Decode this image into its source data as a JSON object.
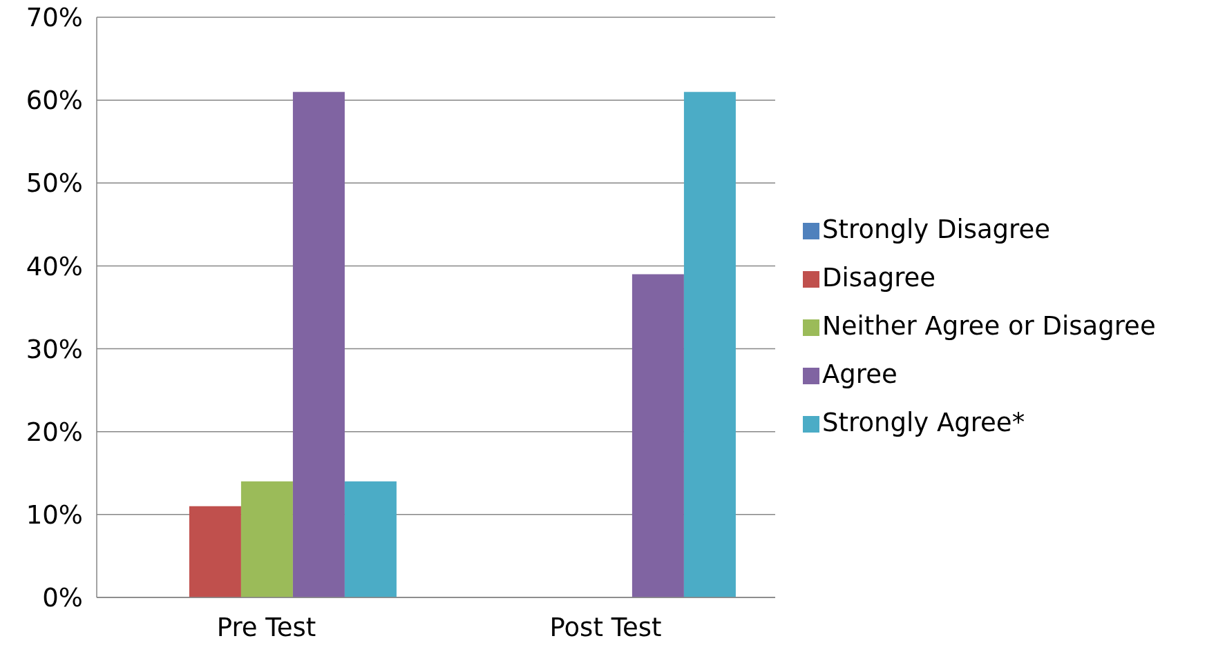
{
  "chart_data": {
    "type": "bar",
    "categories": [
      "Pre Test",
      "Post Test"
    ],
    "series": [
      {
        "name": "Strongly Disagree",
        "color": "#4f81bd",
        "values": [
          0,
          0
        ]
      },
      {
        "name": "Disagree",
        "color": "#c0504d",
        "values": [
          11,
          0
        ]
      },
      {
        "name": "Neither Agree or Disagree",
        "color": "#9bbb59",
        "values": [
          14,
          0
        ]
      },
      {
        "name": "Agree",
        "color": "#8064a2",
        "values": [
          61,
          39
        ]
      },
      {
        "name": "Strongly Agree*",
        "color": "#4bacc6",
        "values": [
          14,
          61
        ]
      }
    ],
    "ylim": [
      0,
      70
    ],
    "yticks": [
      {
        "value": 0,
        "label": "0%"
      },
      {
        "value": 10,
        "label": "10%"
      },
      {
        "value": 20,
        "label": "20%"
      },
      {
        "value": 30,
        "label": "30%"
      },
      {
        "value": 40,
        "label": "40%"
      },
      {
        "value": 50,
        "label": "50%"
      },
      {
        "value": 60,
        "label": "60%"
      },
      {
        "value": 70,
        "label": "70%"
      }
    ],
    "grid": "y",
    "legend": "right"
  }
}
